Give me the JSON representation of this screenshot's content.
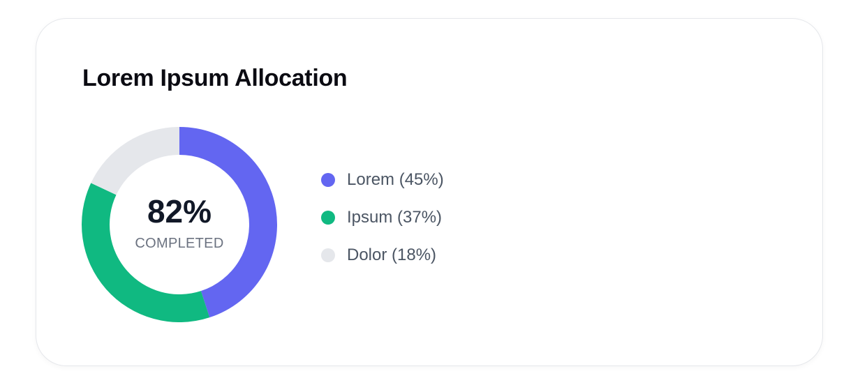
{
  "card": {
    "title": "Lorem Ipsum Allocation"
  },
  "chart_data": {
    "type": "pie",
    "variant": "donut",
    "title": "Lorem Ipsum Allocation",
    "categories": [
      "Lorem",
      "Ipsum",
      "Dolor"
    ],
    "values": [
      45,
      37,
      18
    ],
    "unit": "%",
    "colors": [
      "#6366f1",
      "#10b981",
      "#e5e7eb"
    ],
    "center_value": "82%",
    "center_label": "COMPLETED",
    "legend_placement": "right",
    "legend": [
      {
        "label": "Lorem (45%)",
        "color": "#6366f1"
      },
      {
        "label": "Ipsum (37%)",
        "color": "#10b981"
      },
      {
        "label": "Dolor (18%)",
        "color": "#e5e7eb"
      }
    ]
  }
}
